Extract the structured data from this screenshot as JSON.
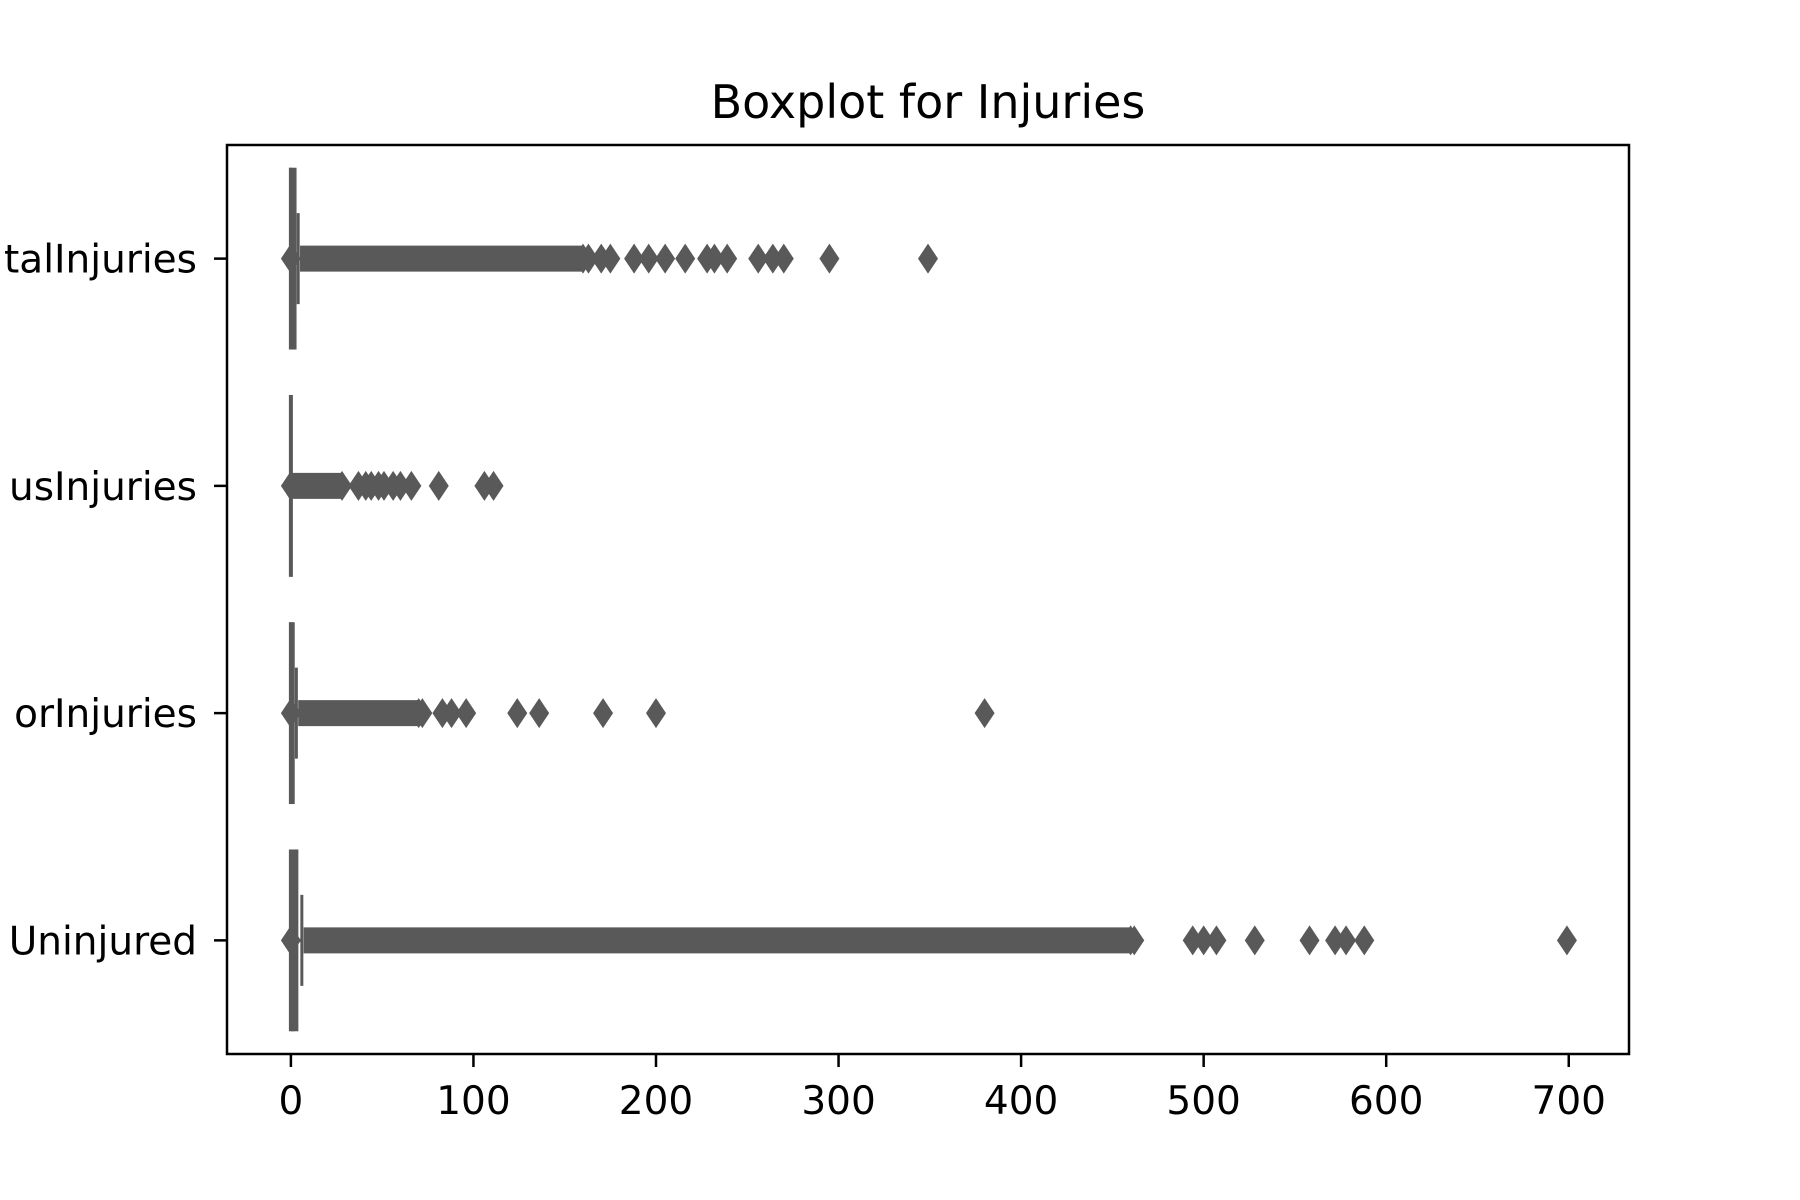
{
  "chart_data": {
    "type": "boxplot",
    "orientation": "horizontal",
    "title": "Boxplot for Injuries",
    "xlabel": "",
    "ylabel": "",
    "xlim": [
      -35,
      733
    ],
    "x_ticks": [
      0,
      100,
      200,
      300,
      400,
      500,
      600,
      700
    ],
    "x_tick_labels": [
      "0",
      "100",
      "200",
      "300",
      "400",
      "500",
      "600",
      "700"
    ],
    "categories": [
      "talInjuries",
      "usInjuries",
      "orInjuries",
      "Uninjured"
    ],
    "color": "#595959",
    "grid": false,
    "series": [
      {
        "category": "talInjuries",
        "box": {
          "q1": 0,
          "median": 0,
          "q3": 2,
          "whisker_low": 0,
          "whisker_high": 4
        },
        "outlier_range": [
          5,
          160
        ],
        "outliers": [
          163,
          170,
          175,
          188,
          196,
          205,
          216,
          228,
          232,
          239,
          256,
          264,
          270,
          295,
          349
        ]
      },
      {
        "category": "usInjuries",
        "box": {
          "q1": 0,
          "median": 0,
          "q3": 0,
          "whisker_low": 0,
          "whisker_high": 0
        },
        "outlier_range": [
          1,
          28
        ],
        "outliers": [
          37,
          41,
          44,
          48,
          51,
          56,
          60,
          66,
          81,
          106,
          111
        ]
      },
      {
        "category": "orInjuries",
        "box": {
          "q1": 0,
          "median": 0,
          "q3": 1,
          "whisker_low": 0,
          "whisker_high": 3
        },
        "outlier_range": [
          4,
          70
        ],
        "outliers": [
          72,
          83,
          88,
          96,
          124,
          136,
          171,
          200,
          380
        ]
      },
      {
        "category": "Uninjured",
        "box": {
          "q1": 0,
          "median": 1,
          "q3": 3,
          "whisker_low": 0,
          "whisker_high": 6
        },
        "outlier_range": [
          7,
          460
        ],
        "outliers": [
          462,
          494,
          500,
          507,
          528,
          558,
          572,
          578,
          588,
          699
        ]
      }
    ]
  }
}
